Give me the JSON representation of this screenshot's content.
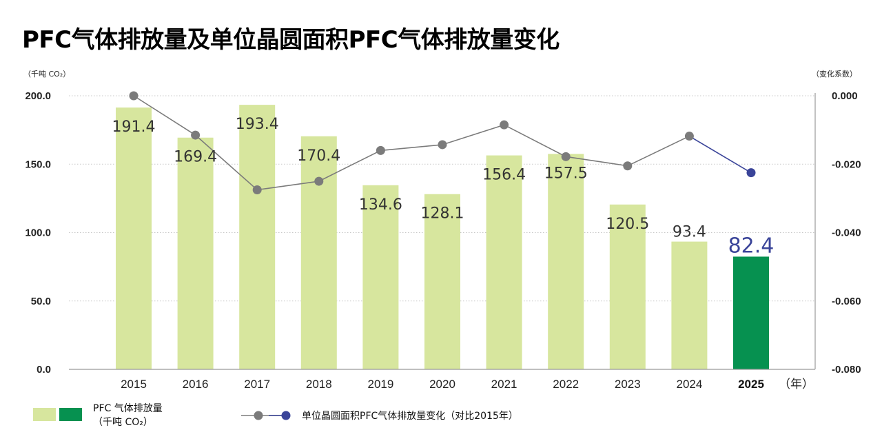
{
  "title": "PFC气体排放量及单位晶圆面积PFC气体排放量变化",
  "chart_data": {
    "type": "bar",
    "title": "PFC气体排放量及单位晶圆面积PFC气体排放量变化",
    "categories": [
      "2015",
      "2016",
      "2017",
      "2018",
      "2019",
      "2020",
      "2021",
      "2022",
      "2023",
      "2024",
      "2025"
    ],
    "x_unit": "（年）",
    "y_left": {
      "unit": "（千吨 CO₂）",
      "ticks": [
        "200.0",
        "150.0",
        "100.0",
        "50.0",
        "0.0"
      ],
      "range": [
        0,
        200
      ]
    },
    "y_right": {
      "unit": "（变化系数）",
      "ticks": [
        "0.000",
        "-0.020",
        "-0.040",
        "-0.060",
        "-0.080"
      ],
      "range": [
        -0.08,
        0
      ]
    },
    "bars": {
      "legend": [
        "PFC 气体排放量",
        "（千吨 CO₂）"
      ],
      "values": [
        191.4,
        169.4,
        193.4,
        170.4,
        134.6,
        128.1,
        156.4,
        157.5,
        120.5,
        93.4,
        82.4
      ],
      "labels": [
        "191.4",
        "169.4",
        "193.4",
        "170.4",
        "134.6",
        "128.1",
        "156.4",
        "157.5",
        "120.5",
        "93.4",
        "82.4"
      ],
      "color": "#d7e69e",
      "highlight_color": "#069150",
      "highlight_index": 10
    },
    "line": {
      "legend": "单位晶圆面积PFC气体排放量变化（对比2015年）",
      "values": [
        0.0,
        -0.0115,
        -0.0275,
        -0.025,
        -0.016,
        -0.0143,
        -0.0085,
        -0.0178,
        -0.0205,
        -0.0118,
        -0.0225
      ],
      "color": "#7b7b7b",
      "highlight_color": "#3a4499"
    },
    "grid": "dotted-horizontal"
  }
}
